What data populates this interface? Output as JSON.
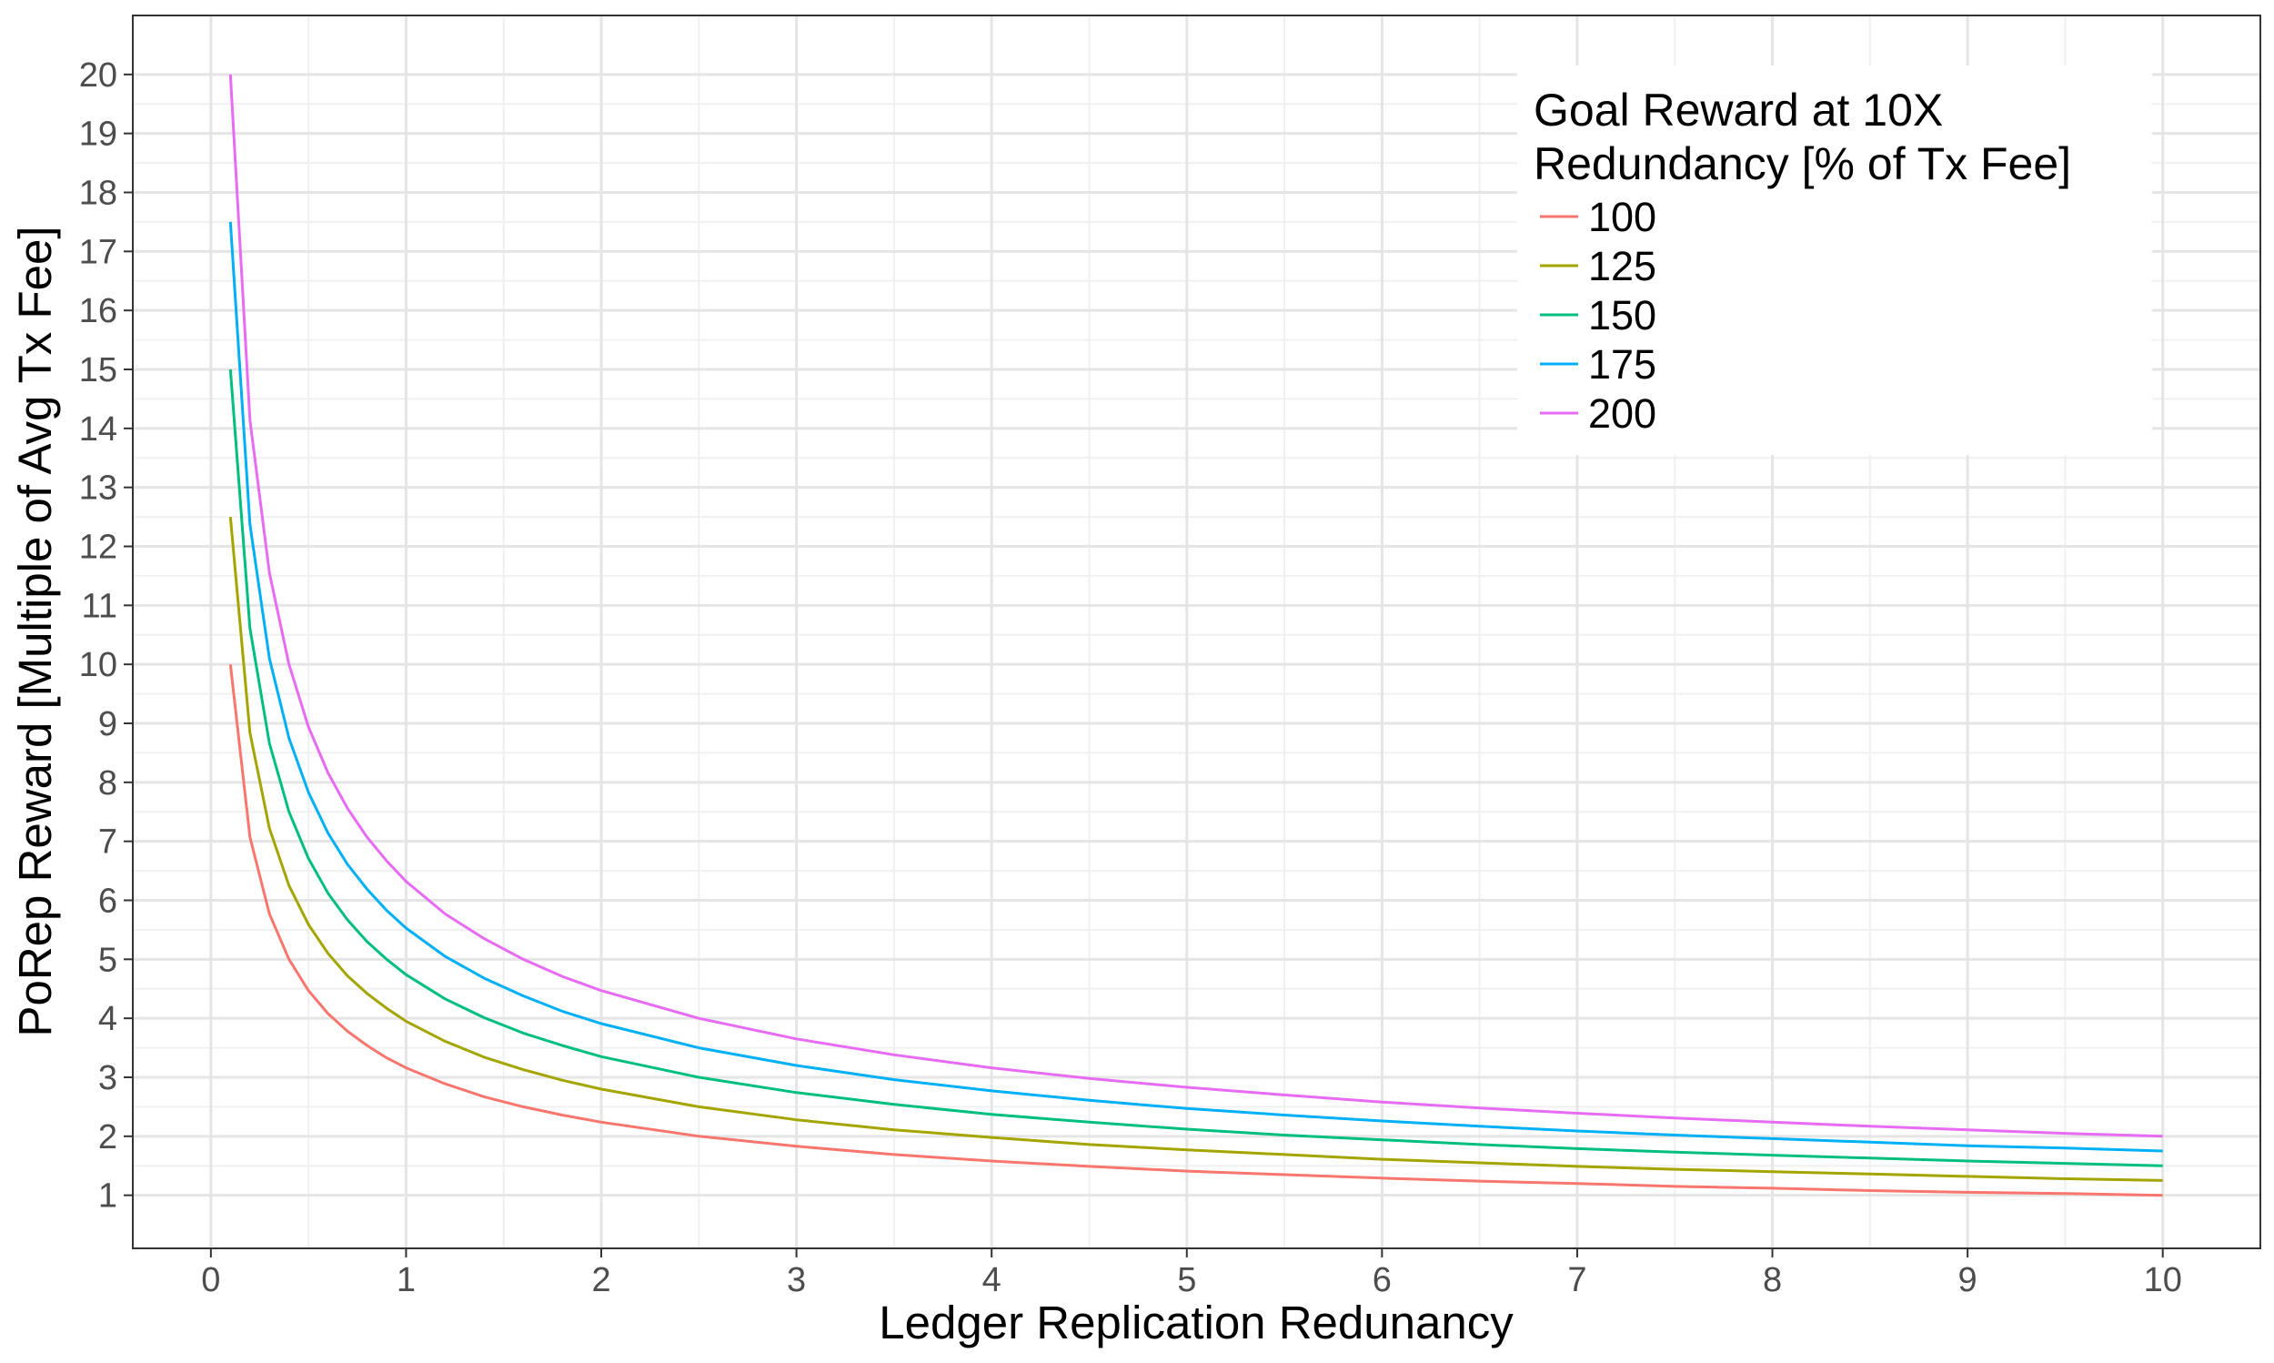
{
  "chart_data": {
    "type": "line",
    "xlabel": "Ledger Replication Redunancy",
    "ylabel": "PoRep Reward [Multiple of Avg Tx Fee]",
    "xlim": [
      -0.4,
      10.5
    ],
    "ylim": [
      0.1,
      21.0
    ],
    "x_ticks": [
      0,
      1,
      2,
      3,
      4,
      5,
      6,
      7,
      8,
      9,
      10
    ],
    "y_ticks": [
      1,
      2,
      3,
      4,
      5,
      6,
      7,
      8,
      9,
      10,
      11,
      12,
      13,
      14,
      15,
      16,
      17,
      18,
      19,
      20
    ],
    "grid": true,
    "legend": {
      "title_lines": [
        "Goal Reward at 10X",
        "Redundancy [% of Tx Fee]"
      ],
      "placement": "top-right"
    },
    "x": [
      0.1,
      0.2,
      0.3,
      0.4,
      0.5,
      0.6,
      0.7,
      0.8,
      0.9,
      1.0,
      1.2,
      1.4,
      1.6,
      1.8,
      2.0,
      2.5,
      3.0,
      3.5,
      4.0,
      4.5,
      5.0,
      5.5,
      6.0,
      6.5,
      7.0,
      7.5,
      8.0,
      8.5,
      9.0,
      9.5,
      10.0
    ],
    "series": [
      {
        "name": "100",
        "color": "#F8766D",
        "values": [
          10.0,
          7.07,
          5.77,
          5.0,
          4.47,
          4.08,
          3.78,
          3.54,
          3.33,
          3.16,
          2.89,
          2.67,
          2.5,
          2.36,
          2.24,
          2.0,
          1.83,
          1.69,
          1.58,
          1.49,
          1.41,
          1.35,
          1.29,
          1.24,
          1.2,
          1.15,
          1.12,
          1.08,
          1.05,
          1.03,
          1.0
        ]
      },
      {
        "name": "125",
        "color": "#A3A500",
        "values": [
          12.5,
          8.84,
          7.22,
          6.25,
          5.59,
          5.1,
          4.72,
          4.42,
          4.17,
          3.95,
          3.61,
          3.34,
          3.13,
          2.95,
          2.8,
          2.5,
          2.28,
          2.11,
          1.98,
          1.86,
          1.77,
          1.69,
          1.61,
          1.55,
          1.49,
          1.44,
          1.4,
          1.36,
          1.32,
          1.28,
          1.25
        ]
      },
      {
        "name": "150",
        "color": "#00BF7D",
        "values": [
          15.0,
          10.61,
          8.66,
          7.5,
          6.71,
          6.12,
          5.67,
          5.3,
          5.0,
          4.74,
          4.33,
          4.01,
          3.75,
          3.54,
          3.35,
          3.0,
          2.74,
          2.54,
          2.37,
          2.24,
          2.12,
          2.02,
          1.94,
          1.86,
          1.79,
          1.73,
          1.68,
          1.63,
          1.58,
          1.54,
          1.5
        ]
      },
      {
        "name": "175",
        "color": "#00B0F6",
        "values": [
          17.5,
          12.37,
          10.1,
          8.75,
          7.83,
          7.14,
          6.61,
          6.19,
          5.83,
          5.53,
          5.05,
          4.68,
          4.38,
          4.12,
          3.91,
          3.5,
          3.2,
          2.96,
          2.77,
          2.61,
          2.47,
          2.36,
          2.26,
          2.17,
          2.09,
          2.02,
          1.96,
          1.9,
          1.84,
          1.8,
          1.75
        ]
      },
      {
        "name": "200",
        "color": "#E76BF3",
        "values": [
          20.0,
          14.14,
          11.55,
          10.0,
          8.94,
          8.16,
          7.56,
          7.07,
          6.67,
          6.32,
          5.77,
          5.35,
          5.0,
          4.71,
          4.47,
          4.0,
          3.65,
          3.38,
          3.16,
          2.98,
          2.83,
          2.7,
          2.58,
          2.48,
          2.39,
          2.31,
          2.24,
          2.17,
          2.11,
          2.05,
          2.0
        ]
      }
    ]
  }
}
